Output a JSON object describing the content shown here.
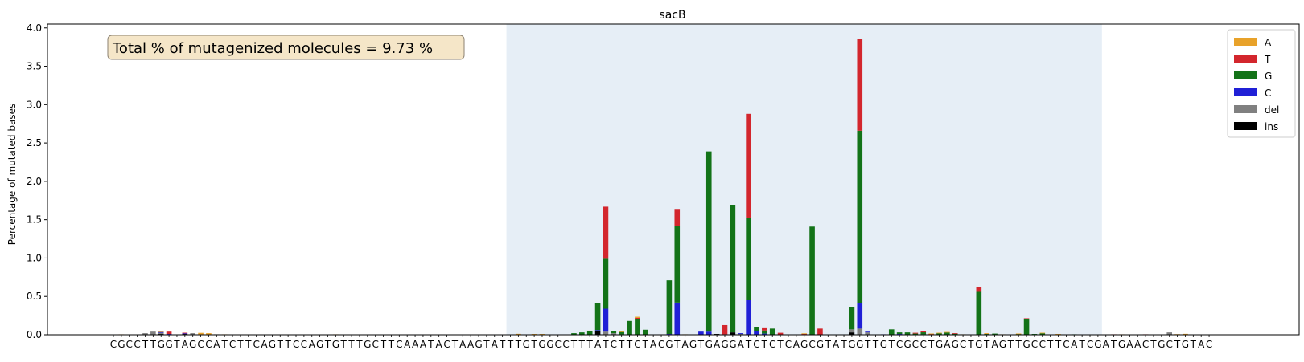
{
  "chart_data": {
    "type": "bar",
    "stacked": true,
    "title": "sacB",
    "xlabel": "",
    "ylabel": "Percentage of mutated bases",
    "ylim": [
      0,
      4.05
    ],
    "yticks": [
      "0.0",
      "0.5",
      "1.0",
      "1.5",
      "2.0",
      "2.5",
      "3.0",
      "3.5",
      "4.0"
    ],
    "sequence": "CGCCTTGGTAGCCATCTTCAGTTCCAGTGTTTGCTTCAAATACTAAGTATTTGTGGCCTTTATCTTCTACGTAGTGAGGATCTCTCAGCGTATGGTTGTCGCCTGAGCTGTAGTTGCCTTCATCGATGAACTGCTGTAC",
    "highlight_range": [
      50,
      124
    ],
    "annotation": "Total % of mutagenized molecules = 9.73 %",
    "legend": {
      "position": "top-right"
    },
    "series": [
      {
        "name": "A",
        "color": "#e8a22a",
        "values": {
          "1": 0.006,
          "6": 0.01,
          "11": 0.018,
          "12": 0.02,
          "14": 0.006,
          "28": 0.006,
          "51": 0.006,
          "53": 0.01,
          "54": 0.01,
          "60": 0.008,
          "64": 0.006,
          "66": 0.015,
          "72": 0.006,
          "87": 0.008,
          "103": 0.006,
          "104": 0.006,
          "105": 0.006,
          "107": 0.006,
          "109": 0.008,
          "110": 0.01,
          "112": 0.006,
          "114": 0.006,
          "117": 0.006,
          "119": 0.005,
          "127": 0.006,
          "134": 0.008,
          "135": 0.006
        }
      },
      {
        "name": "T",
        "color": "#d3262d",
        "values": {
          "7": 0.03,
          "9": 0.006,
          "11": 0.006,
          "51": 0.006,
          "55": 0.005,
          "62": 0.68,
          "66": 0.02,
          "71": 0.21,
          "73": 0.005,
          "77": 0.12,
          "78": 0.005,
          "80": 1.36,
          "82": 0.03,
          "84": 0.025,
          "87": 0.01,
          "89": 0.08,
          "94": 1.2,
          "101": 0.01,
          "102": 0.015,
          "103": 0.01,
          "106": 0.005,
          "109": 0.06,
          "113": 0.005,
          "115": 0.015,
          "122": 0.005,
          "126": 0.006,
          "130": 0.006,
          "135": 0.006
        }
      },
      {
        "name": "G",
        "color": "#137318",
        "values": {
          "58": 0.02,
          "59": 0.03,
          "60": 0.045,
          "61": 0.35,
          "62": 0.65,
          "63": 0.03,
          "64": 0.03,
          "65": 0.18,
          "66": 0.2,
          "67": 0.06,
          "70": 0.7,
          "71": 1.0,
          "75": 2.35,
          "78": 1.66,
          "80": 1.07,
          "81": 0.05,
          "82": 0.04,
          "83": 0.08,
          "88": 1.41,
          "93": 0.29,
          "94": 2.25,
          "98": 0.07,
          "99": 0.02,
          "100": 0.03,
          "101": 0.015,
          "102": 0.025,
          "104": 0.02,
          "105": 0.03,
          "106": 0.015,
          "109": 0.56,
          "110": 0.01,
          "111": 0.015,
          "114": 0.01,
          "115": 0.2,
          "116": 0.01,
          "117": 0.02,
          "119": 0.005,
          "121": 0.006
        }
      },
      {
        "name": "C",
        "color": "#2020d6",
        "values": {
          "6": 0.01,
          "7": 0.01,
          "9": 0.01,
          "61": 0.01,
          "62": 0.3,
          "67": 0.005,
          "70": 0.01,
          "71": 0.42,
          "74": 0.04,
          "75": 0.04,
          "77": 0.006,
          "79": 0.01,
          "80": 0.45,
          "81": 0.05,
          "82": 0.015,
          "94": 0.33,
          "95": 0.01,
          "97": 0.006,
          "99": 0.01
        }
      },
      {
        "name": "del",
        "color": "#808080",
        "values": {
          "4": 0.02,
          "5": 0.04,
          "6": 0.015,
          "10": 0.02,
          "13": 0.006,
          "62": 0.04,
          "63": 0.02,
          "79": 0.01,
          "93": 0.04,
          "94": 0.08,
          "95": 0.03,
          "102": 0.006,
          "133": 0.03
        }
      },
      {
        "name": "ins",
        "color": "#000000",
        "values": {
          "6": 0.01,
          "9": 0.01,
          "61": 0.05,
          "64": 0.006,
          "76": 0.01,
          "78": 0.03,
          "93": 0.03
        }
      }
    ]
  }
}
